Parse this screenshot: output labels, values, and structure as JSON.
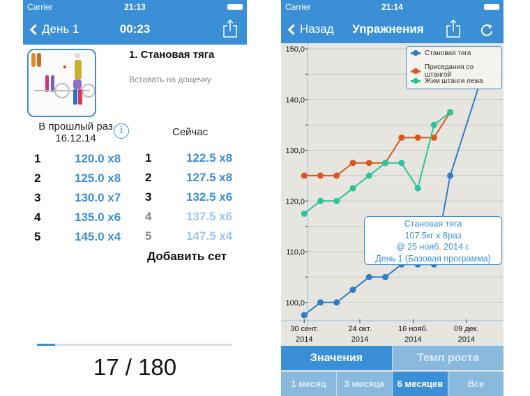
{
  "left": {
    "status": {
      "carrier": "Carrier",
      "time": "21:13"
    },
    "nav": {
      "back_label": "День 1",
      "title": "00:23"
    },
    "exercise": {
      "title": "1. Становая тяга",
      "note": "Вставать на дощечку"
    },
    "previous": {
      "label": "В прошлый раз",
      "date": "16.12.14"
    },
    "current_label": "Сейчас",
    "previous_sets": [
      {
        "n": "1",
        "value": "120.0 x8"
      },
      {
        "n": "2",
        "value": "125.0 x8"
      },
      {
        "n": "3",
        "value": "130.0 x7"
      },
      {
        "n": "4",
        "value": "135.0 x6"
      },
      {
        "n": "5",
        "value": "145.0 x4"
      }
    ],
    "current_sets": [
      {
        "n": "1",
        "value": "122.5 x8",
        "done": true
      },
      {
        "n": "2",
        "value": "127.5 x8",
        "done": true
      },
      {
        "n": "3",
        "value": "132.5 x6",
        "done": true
      },
      {
        "n": "4",
        "value": "137.5 x6",
        "done": false
      },
      {
        "n": "5",
        "value": "147.5 x4",
        "done": false
      }
    ],
    "add_set": "Добавить сет",
    "progress": {
      "current": 17,
      "total": 180,
      "label": "17 / 180"
    }
  },
  "right": {
    "status": {
      "carrier": "Carrier",
      "time": "21:14"
    },
    "nav": {
      "back_label": "Назад",
      "title": "Упражнения"
    },
    "tooltip": [
      "Становая тяга",
      "107.5кг x 8раз",
      "@ 25 нояб. 2014 г.",
      "День 1 (Базовая программа)"
    ],
    "mode_tabs": [
      {
        "label": "Значения",
        "selected": true
      },
      {
        "label": "Темп роста",
        "selected": false
      }
    ],
    "range_tabs": [
      {
        "label": "1 месяц",
        "selected": false
      },
      {
        "label": "3 месяца",
        "selected": false
      },
      {
        "label": "6 месяцев",
        "selected": true
      },
      {
        "label": "Все",
        "selected": false
      }
    ]
  },
  "colors": {
    "accent": "#3a8fd6",
    "series_blue": "#2f7dc0",
    "series_orange": "#d9581a",
    "series_green": "#2cc29b"
  },
  "chart_data": {
    "type": "line",
    "xlim": [
      "2014-09-20",
      "2014-12-25"
    ],
    "ylim": [
      96.4,
      151.1
    ],
    "grid": true,
    "legend_placement": "top-right",
    "y_ticks": [
      {
        "v": 100,
        "label": "100,0"
      },
      {
        "v": 110,
        "label": "110,0"
      },
      {
        "v": 120,
        "label": "120,0"
      },
      {
        "v": 130,
        "label": "130,0"
      },
      {
        "v": 140,
        "label": "140,0"
      },
      {
        "v": 150,
        "label": "150,0"
      }
    ],
    "x_ticks": [
      {
        "date": "2014-09-30",
        "label": [
          "30 сент.",
          "2014"
        ]
      },
      {
        "date": "2014-10-24",
        "label": [
          "24 окт.",
          "2014"
        ]
      },
      {
        "date": "2014-11-16",
        "label": [
          "16 нояб.",
          "2014"
        ]
      },
      {
        "date": "2014-12-09",
        "label": [
          "09 дек.",
          "2014"
        ]
      }
    ],
    "x": [
      "2014-09-30",
      "2014-10-07",
      "2014-10-14",
      "2014-10-21",
      "2014-10-28",
      "2014-11-04",
      "2014-11-11",
      "2014-11-18",
      "2014-11-25",
      "2014-12-02",
      "2014-12-16"
    ],
    "series": [
      {
        "name": "Становая тяга",
        "color": "#2f7dc0",
        "values": [
          97.5,
          100,
          100,
          102.5,
          105,
          105,
          107.5,
          107.5,
          107.5,
          125,
          145
        ]
      },
      {
        "name": "Приседания со штангой",
        "color": "#d9581a",
        "values": [
          125,
          125,
          125,
          127.5,
          127.5,
          127.5,
          132.5,
          132.5,
          132.5,
          137.5,
          null
        ]
      },
      {
        "name": "Жим штанги лежа",
        "color": "#2cc29b",
        "values": [
          117.5,
          120,
          120,
          122.5,
          125,
          127.5,
          127.5,
          122.5,
          135,
          137.5,
          null
        ]
      }
    ],
    "highlighted": {
      "series": 0,
      "date": "2014-11-25",
      "value": 107.5
    }
  }
}
